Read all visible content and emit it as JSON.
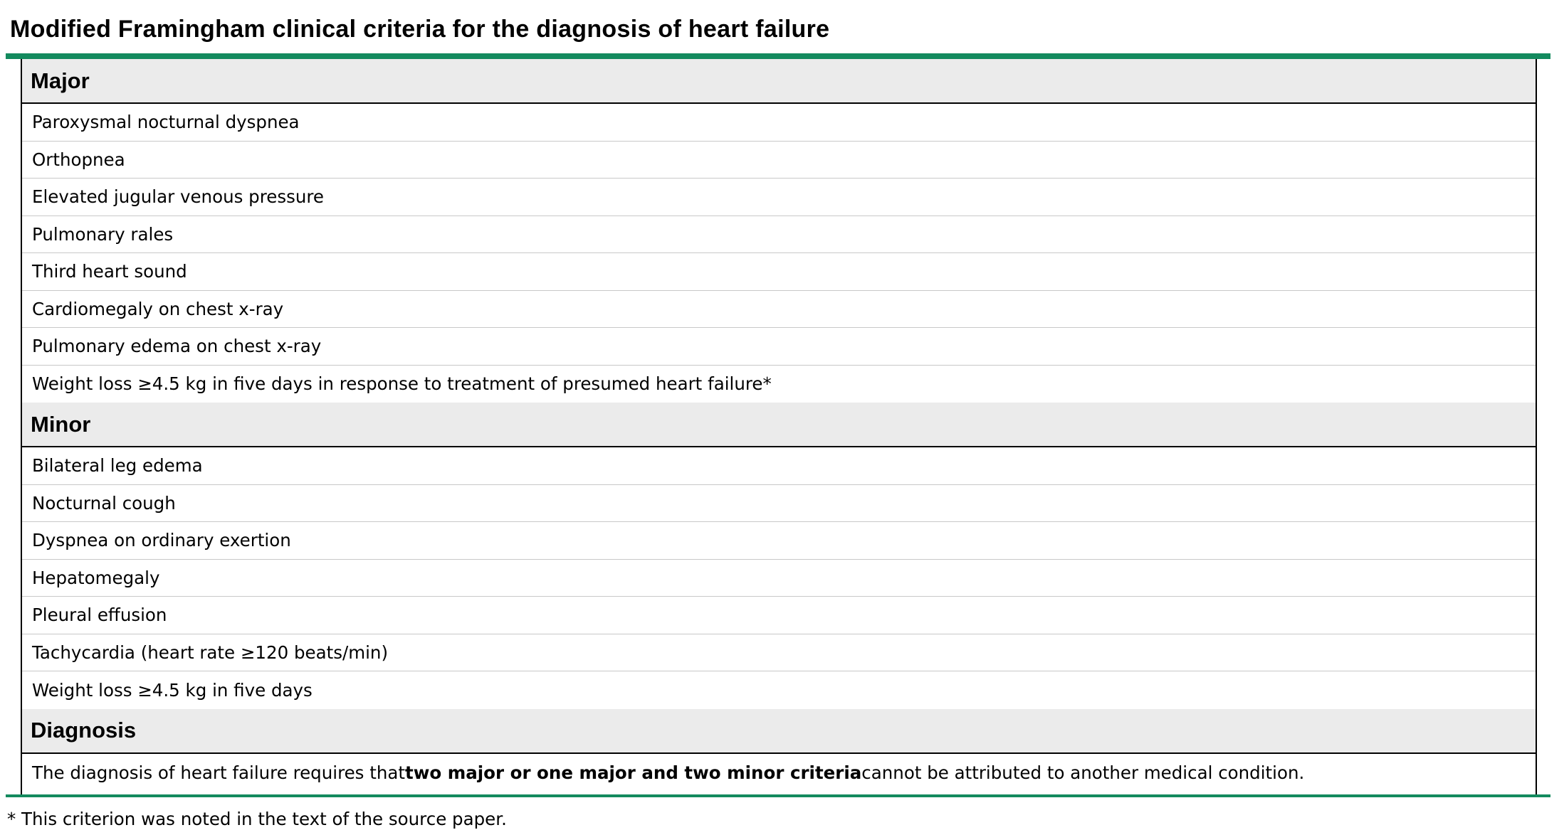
{
  "title": "Modified Framingham clinical criteria for the diagnosis of heart failure",
  "accent_color": "#138a5e",
  "sections": [
    {
      "header": "Major",
      "items": [
        "Paroxysmal nocturnal dyspnea",
        "Orthopnea",
        "Elevated jugular venous pressure",
        "Pulmonary rales",
        "Third heart sound",
        "Cardiomegaly on chest x-ray",
        "Pulmonary edema on chest x-ray",
        "Weight loss ≥4.5 kg in five days in response to treatment of presumed heart failure*"
      ]
    },
    {
      "header": "Minor",
      "items": [
        "Bilateral leg edema",
        "Nocturnal cough",
        "Dyspnea on ordinary exertion",
        "Hepatomegaly",
        "Pleural effusion",
        "Tachycardia (heart rate ≥120 beats/min)",
        "Weight loss ≥4.5 kg in five days"
      ]
    },
    {
      "header": "Diagnosis",
      "text_before": "The diagnosis of heart failure requires that ",
      "text_bold": "two major or one major and two minor criteria",
      "text_after": " cannot be attributed to another medical condition."
    }
  ],
  "footnote": "* This criterion was noted in the text of the source paper."
}
